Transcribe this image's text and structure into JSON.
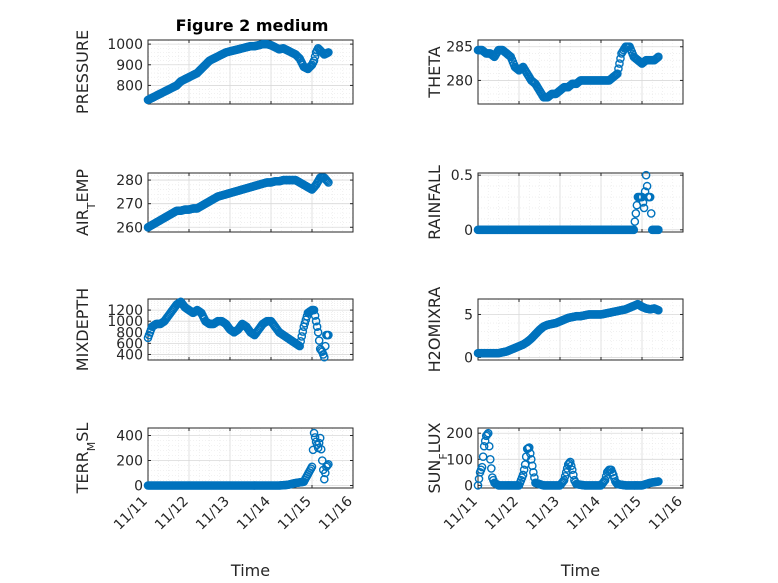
{
  "chart_data": [
    {
      "type": "scatter",
      "title": "Figure 2 medium",
      "ylabel": "PRESSURE",
      "ylim": [
        710,
        1020
      ],
      "yticks": [
        800,
        900,
        1000
      ],
      "xlim": [
        "11/11",
        "11/16"
      ],
      "grid": "on (major and minor)",
      "color": "#0072BD",
      "marker": "circle",
      "x": [
        11.0,
        11.1,
        11.2,
        11.3,
        11.4,
        11.5,
        11.6,
        11.7,
        11.8,
        11.9,
        12.0,
        12.1,
        12.2,
        12.3,
        12.4,
        12.5,
        12.6,
        12.7,
        12.8,
        12.9,
        13.0,
        13.1,
        13.2,
        13.3,
        13.4,
        13.5,
        13.6,
        13.7,
        13.8,
        13.9,
        14.0,
        14.1,
        14.2,
        14.3,
        14.4,
        14.5,
        14.6,
        14.7,
        14.8,
        14.9,
        15.0,
        15.05,
        15.1,
        15.15,
        15.2,
        15.3,
        15.4
      ],
      "y": [
        730,
        740,
        750,
        760,
        770,
        780,
        790,
        800,
        820,
        830,
        840,
        850,
        860,
        880,
        900,
        920,
        930,
        940,
        950,
        960,
        965,
        970,
        975,
        980,
        985,
        990,
        990,
        995,
        1000,
        1000,
        995,
        985,
        975,
        980,
        970,
        960,
        950,
        930,
        890,
        880,
        900,
        920,
        960,
        980,
        970,
        950,
        960
      ]
    },
    {
      "type": "scatter",
      "ylabel": "THETA",
      "ylim": [
        276.5,
        286
      ],
      "yticks": [
        280,
        285
      ],
      "xlim": [
        "11/11",
        "11/16"
      ],
      "x": [
        11.0,
        11.1,
        11.2,
        11.3,
        11.4,
        11.5,
        11.6,
        11.7,
        11.8,
        11.9,
        12.0,
        12.1,
        12.2,
        12.3,
        12.4,
        12.5,
        12.6,
        12.7,
        12.8,
        12.9,
        13.0,
        13.1,
        13.2,
        13.3,
        13.4,
        13.5,
        13.6,
        13.7,
        13.8,
        13.9,
        14.0,
        14.1,
        14.2,
        14.3,
        14.4,
        14.5,
        14.6,
        14.7,
        14.8,
        14.9,
        15.0,
        15.1,
        15.2,
        15.3,
        15.4
      ],
      "y": [
        284.5,
        284.5,
        284,
        284,
        283.5,
        284.5,
        284.5,
        284,
        283.5,
        282,
        281.5,
        282,
        281,
        280,
        279.5,
        278.5,
        277.5,
        277.5,
        278,
        278,
        278.5,
        279,
        279,
        279.5,
        279.5,
        280,
        280,
        280,
        280,
        280,
        280,
        280,
        280,
        280.5,
        281,
        284,
        285,
        285,
        283.5,
        283,
        282.5,
        283,
        283,
        283,
        283.5
      ]
    },
    {
      "type": "scatter",
      "ylabel": "AIR_TEMP",
      "ylim": [
        258,
        283
      ],
      "yticks": [
        260,
        270,
        280
      ],
      "xlim": [
        "11/11",
        "11/16"
      ],
      "x": [
        11.0,
        11.1,
        11.2,
        11.3,
        11.4,
        11.5,
        11.6,
        11.7,
        11.8,
        11.9,
        12.0,
        12.1,
        12.2,
        12.3,
        12.4,
        12.5,
        12.6,
        12.7,
        12.8,
        12.9,
        13.0,
        13.1,
        13.2,
        13.3,
        13.4,
        13.5,
        13.6,
        13.7,
        13.8,
        13.9,
        14.0,
        14.1,
        14.2,
        14.3,
        14.4,
        14.5,
        14.6,
        14.7,
        14.8,
        14.9,
        15.0,
        15.1,
        15.2,
        15.3,
        15.4
      ],
      "y": [
        260,
        261,
        262,
        263,
        264,
        265,
        266,
        267,
        267,
        267.5,
        267.5,
        268,
        268,
        269,
        270,
        271,
        272,
        273,
        273.5,
        274,
        274.5,
        275,
        275.5,
        276,
        276.5,
        277,
        277.5,
        278,
        278.5,
        279,
        279,
        279.5,
        279.5,
        280,
        280,
        280,
        280,
        279,
        278,
        277,
        276,
        278,
        281,
        281,
        279
      ]
    },
    {
      "type": "scatter",
      "ylabel": "RAINFALL",
      "ylim": [
        -0.02,
        0.52
      ],
      "yticks": [
        0,
        0.5
      ],
      "xlim": [
        "11/11",
        "11/16"
      ],
      "x": [
        11.0,
        11.1,
        11.2,
        11.3,
        11.4,
        11.5,
        11.6,
        11.7,
        11.8,
        11.9,
        12.0,
        12.1,
        12.2,
        12.3,
        12.4,
        12.5,
        12.6,
        12.7,
        12.8,
        12.9,
        13.0,
        13.1,
        13.2,
        13.3,
        13.4,
        13.5,
        13.6,
        13.7,
        13.8,
        13.9,
        14.0,
        14.1,
        14.2,
        14.3,
        14.4,
        14.5,
        14.6,
        14.7,
        14.8,
        14.9,
        15.0,
        15.05,
        15.1,
        15.15,
        15.2,
        15.25,
        15.3,
        15.35,
        15.4
      ],
      "y": [
        0,
        0,
        0,
        0,
        0,
        0,
        0,
        0,
        0,
        0,
        0,
        0,
        0,
        0,
        0,
        0,
        0,
        0,
        0,
        0,
        0,
        0,
        0,
        0,
        0,
        0,
        0,
        0,
        0,
        0,
        0,
        0,
        0,
        0,
        0,
        0,
        0,
        0,
        0,
        0.3,
        0.3,
        0.2,
        0.5,
        0.3,
        0.3,
        0,
        0,
        0,
        0
      ]
    },
    {
      "type": "scatter",
      "ylabel": "MIXDEPTH",
      "ylim": [
        300,
        1400
      ],
      "yticks": [
        400,
        600,
        800,
        1000,
        1200
      ],
      "xlim": [
        "11/11",
        "11/16"
      ],
      "x": [
        11.0,
        11.1,
        11.2,
        11.3,
        11.4,
        11.5,
        11.6,
        11.7,
        11.8,
        11.9,
        12.0,
        12.1,
        12.2,
        12.3,
        12.4,
        12.5,
        12.6,
        12.7,
        12.8,
        12.9,
        13.0,
        13.1,
        13.2,
        13.3,
        13.4,
        13.5,
        13.6,
        13.7,
        13.8,
        13.9,
        14.0,
        14.1,
        14.2,
        14.3,
        14.4,
        14.5,
        14.6,
        14.7,
        14.8,
        14.9,
        15.0,
        15.05,
        15.1,
        15.15,
        15.2,
        15.25,
        15.3,
        15.35,
        15.4
      ],
      "y": [
        700,
        900,
        950,
        950,
        1000,
        1100,
        1200,
        1300,
        1350,
        1250,
        1200,
        1150,
        1200,
        1150,
        1000,
        950,
        950,
        1000,
        1000,
        950,
        850,
        800,
        850,
        950,
        900,
        800,
        750,
        850,
        950,
        1000,
        1000,
        900,
        800,
        750,
        700,
        650,
        600,
        550,
        900,
        1150,
        1200,
        1200,
        1000,
        800,
        500,
        450,
        350,
        750,
        750
      ]
    },
    {
      "type": "scatter",
      "ylabel": "H2OMIXRA",
      "ylim": [
        -0.3,
        6.8
      ],
      "yticks": [
        0,
        5
      ],
      "xlim": [
        "11/11",
        "11/16"
      ],
      "x": [
        11.0,
        11.1,
        11.2,
        11.3,
        11.4,
        11.5,
        11.6,
        11.7,
        11.8,
        11.9,
        12.0,
        12.1,
        12.2,
        12.3,
        12.4,
        12.5,
        12.6,
        12.7,
        12.8,
        12.9,
        13.0,
        13.1,
        13.2,
        13.3,
        13.4,
        13.5,
        13.6,
        13.7,
        13.8,
        13.9,
        14.0,
        14.1,
        14.2,
        14.3,
        14.4,
        14.5,
        14.6,
        14.7,
        14.8,
        14.9,
        15.0,
        15.1,
        15.2,
        15.3,
        15.4
      ],
      "y": [
        0.5,
        0.5,
        0.5,
        0.5,
        0.5,
        0.5,
        0.6,
        0.7,
        0.9,
        1.1,
        1.3,
        1.5,
        1.8,
        2.2,
        2.7,
        3.2,
        3.6,
        3.8,
        3.9,
        4.0,
        4.2,
        4.4,
        4.6,
        4.7,
        4.8,
        4.8,
        4.9,
        5.0,
        5.0,
        5.0,
        5.0,
        5.1,
        5.2,
        5.3,
        5.4,
        5.5,
        5.6,
        5.8,
        6.0,
        6.2,
        5.9,
        5.7,
        5.6,
        5.7,
        5.5
      ]
    },
    {
      "type": "scatter",
      "ylabel": "TERR_MSL",
      "ylim": [
        -20,
        460
      ],
      "yticks": [
        0,
        200,
        400
      ],
      "xlim": [
        "11/11",
        "11/16"
      ],
      "xticks": [
        "11/11",
        "11/12",
        "11/13",
        "11/14",
        "11/15",
        "11/16"
      ],
      "xlabel": "Time",
      "x": [
        11.0,
        11.2,
        11.4,
        11.6,
        11.8,
        12.0,
        12.2,
        12.4,
        12.6,
        12.8,
        13.0,
        13.2,
        13.4,
        13.6,
        13.8,
        14.0,
        14.2,
        14.4,
        14.6,
        14.8,
        15.0,
        15.05,
        15.1,
        15.15,
        15.2,
        15.25,
        15.3,
        15.35,
        15.4
      ],
      "y": [
        0,
        0,
        0,
        0,
        0,
        0,
        0,
        0,
        0,
        0,
        0,
        0,
        0,
        0,
        0,
        0,
        0,
        5,
        20,
        30,
        150,
        420,
        350,
        300,
        380,
        200,
        50,
        150,
        170
      ]
    },
    {
      "type": "scatter",
      "ylabel": "SUN_FLUX",
      "ylim": [
        -10,
        220
      ],
      "yticks": [
        0,
        100,
        200
      ],
      "xlim": [
        "11/11",
        "11/16"
      ],
      "xticks": [
        "11/11",
        "11/12",
        "11/13",
        "11/14",
        "11/15",
        "11/16"
      ],
      "xlabel": "Time",
      "x": [
        11.0,
        11.05,
        11.1,
        11.15,
        11.2,
        11.25,
        11.3,
        11.35,
        11.4,
        11.5,
        11.6,
        11.8,
        12.0,
        12.1,
        12.15,
        12.2,
        12.25,
        12.3,
        12.35,
        12.4,
        12.6,
        12.8,
        13.0,
        13.1,
        13.15,
        13.2,
        13.25,
        13.3,
        13.35,
        13.4,
        13.6,
        13.8,
        14.0,
        14.1,
        14.15,
        14.2,
        14.25,
        14.3,
        14.35,
        14.4,
        14.6,
        14.8,
        15.0,
        15.2,
        15.4
      ],
      "y": [
        0,
        50,
        70,
        150,
        190,
        200,
        100,
        30,
        10,
        0,
        0,
        0,
        0,
        40,
        80,
        140,
        145,
        100,
        50,
        10,
        0,
        0,
        0,
        20,
        50,
        80,
        90,
        60,
        20,
        5,
        0,
        0,
        0,
        20,
        50,
        60,
        60,
        40,
        15,
        5,
        0,
        0,
        0,
        10,
        15
      ]
    }
  ]
}
